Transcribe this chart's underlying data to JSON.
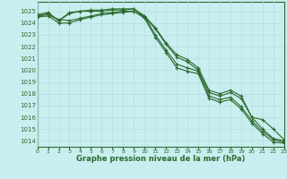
{
  "title": "Graphe pression niveau de la mer (hPa)",
  "bg_color": "#c8eef0",
  "grid_color": "#b8dde0",
  "line_color": "#2d6a2d",
  "ylim": [
    1013.5,
    1025.8
  ],
  "xlim": [
    0,
    23
  ],
  "yticks": [
    1014,
    1015,
    1016,
    1017,
    1018,
    1019,
    1020,
    1021,
    1022,
    1023,
    1024,
    1025
  ],
  "xticks": [
    0,
    1,
    2,
    3,
    4,
    5,
    6,
    7,
    8,
    9,
    10,
    11,
    12,
    13,
    14,
    15,
    16,
    17,
    18,
    19,
    20,
    21,
    22,
    23
  ],
  "series": [
    [
      1024.7,
      1024.9,
      1024.2,
      1024.9,
      1025.0,
      1025.1,
      1025.1,
      1025.2,
      1025.2,
      1025.2,
      1024.6,
      1023.6,
      1022.3,
      1021.3,
      1020.9,
      1020.2,
      1018.3,
      1018.0,
      1018.3,
      1017.8,
      1016.0,
      1015.0,
      1014.2,
      1014.0
    ],
    [
      1024.6,
      1024.8,
      1024.2,
      1024.8,
      1025.0,
      1025.0,
      1025.0,
      1025.1,
      1025.1,
      1025.2,
      1024.5,
      1023.5,
      1022.2,
      1021.1,
      1020.7,
      1020.0,
      1018.1,
      1017.8,
      1018.1,
      1017.6,
      1016.0,
      1015.8,
      1015.0,
      1014.1
    ],
    [
      1024.6,
      1024.7,
      1024.3,
      1024.2,
      1024.4,
      1024.6,
      1024.8,
      1024.9,
      1025.0,
      1025.0,
      1024.5,
      1023.0,
      1021.7,
      1020.5,
      1020.2,
      1019.9,
      1017.8,
      1017.5,
      1017.7,
      1016.9,
      1015.7,
      1014.8,
      1014.1,
      1013.9
    ],
    [
      1024.5,
      1024.6,
      1024.0,
      1024.0,
      1024.3,
      1024.5,
      1024.7,
      1024.8,
      1024.9,
      1025.0,
      1024.4,
      1022.8,
      1021.5,
      1020.2,
      1019.9,
      1019.7,
      1017.6,
      1017.3,
      1017.5,
      1016.7,
      1015.5,
      1014.6,
      1013.9,
      1013.8
    ]
  ]
}
